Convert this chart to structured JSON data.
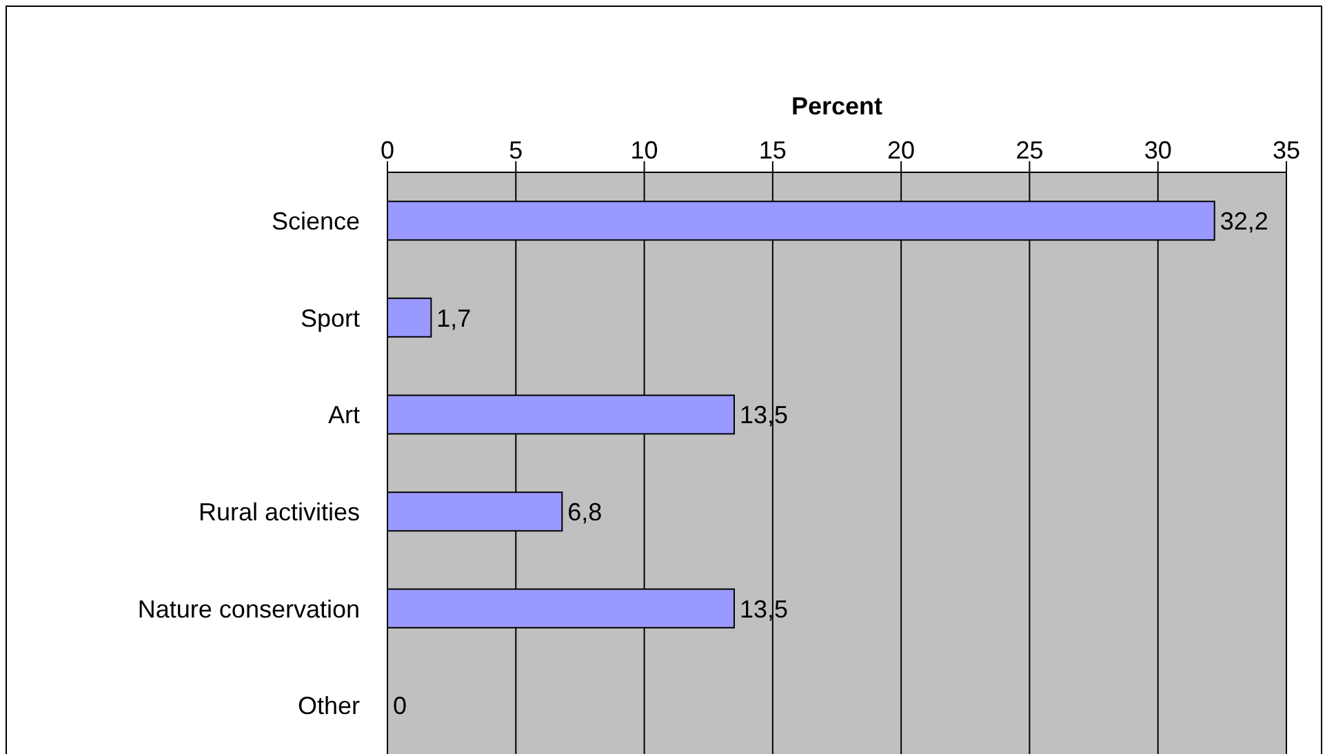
{
  "chart_data": {
    "type": "bar",
    "orientation": "horizontal",
    "xlabel": "Percent",
    "categories": [
      "Science",
      "Sport",
      "Art",
      "Rural activities",
      "Nature conservation",
      "Other"
    ],
    "values": [
      32.2,
      1.7,
      13.5,
      6.8,
      13.5,
      0
    ],
    "value_labels": [
      "32,2",
      "1,7",
      "13,5",
      "6,8",
      "13,5",
      "0"
    ],
    "color": "#9999ff",
    "xlim": [
      0,
      35
    ],
    "xticks": [
      0,
      5,
      10,
      15,
      20,
      25,
      30,
      35
    ],
    "grid": "x",
    "legend": false
  }
}
